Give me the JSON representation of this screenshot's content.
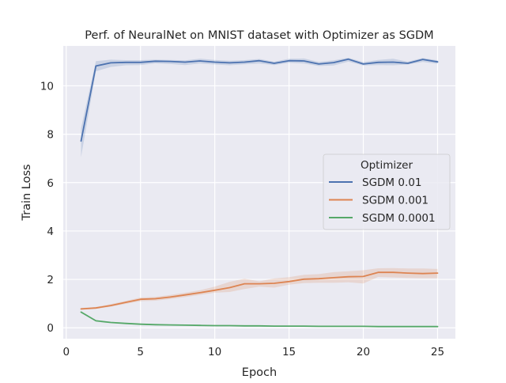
{
  "chart_data": {
    "type": "line",
    "title": "Perf. of NeuralNet on MNIST dataset with Optimizer as SGDM",
    "xlabel": "Epoch",
    "ylabel": "Train Loss",
    "xlim": [
      -0.2,
      26.2
    ],
    "ylim": [
      -0.45,
      11.65
    ],
    "x_ticks": [
      0,
      5,
      10,
      15,
      20,
      25
    ],
    "y_ticks": [
      0,
      2,
      4,
      6,
      8,
      10
    ],
    "grid": true,
    "legend": {
      "title": "Optimizer",
      "placement": "center-right"
    },
    "x": [
      1,
      2,
      3,
      4,
      5,
      6,
      7,
      8,
      9,
      10,
      11,
      12,
      13,
      14,
      15,
      16,
      17,
      18,
      19,
      20,
      21,
      22,
      23,
      24,
      25
    ],
    "series": [
      {
        "name": "SGDM 0.01",
        "color": "#4c72b0",
        "values": [
          7.72,
          10.82,
          10.95,
          10.97,
          10.97,
          11.02,
          11.01,
          10.98,
          11.03,
          10.98,
          10.95,
          10.98,
          11.04,
          10.93,
          11.04,
          11.03,
          10.9,
          10.96,
          11.1,
          10.9,
          10.97,
          10.98,
          10.93,
          11.09,
          10.99
        ],
        "band_low": [
          7.05,
          10.6,
          10.78,
          10.85,
          10.86,
          10.93,
          10.9,
          10.86,
          10.92,
          10.88,
          10.85,
          10.89,
          10.92,
          10.86,
          10.95,
          10.92,
          10.82,
          10.84,
          11.0,
          10.84,
          10.86,
          10.85,
          10.88,
          10.99,
          10.91
        ],
        "band_high": [
          8.25,
          11.02,
          11.08,
          11.06,
          11.06,
          11.08,
          11.07,
          11.05,
          11.12,
          11.07,
          11.04,
          11.06,
          11.11,
          11.0,
          11.12,
          11.13,
          10.99,
          11.05,
          11.16,
          10.98,
          11.07,
          11.12,
          11.0,
          11.15,
          11.05
        ]
      },
      {
        "name": "SGDM 0.001",
        "color": "#dd8452",
        "values": [
          0.78,
          0.82,
          0.92,
          1.05,
          1.18,
          1.2,
          1.27,
          1.36,
          1.45,
          1.55,
          1.66,
          1.82,
          1.82,
          1.84,
          1.91,
          2.01,
          2.03,
          2.07,
          2.11,
          2.12,
          2.29,
          2.29,
          2.26,
          2.24,
          2.26
        ],
        "band_low": [
          0.74,
          0.79,
          0.87,
          0.99,
          1.1,
          1.12,
          1.19,
          1.27,
          1.36,
          1.45,
          1.48,
          1.6,
          1.7,
          1.66,
          1.78,
          1.85,
          1.86,
          1.86,
          1.88,
          1.83,
          2.1,
          2.08,
          2.06,
          2.05,
          2.05
        ],
        "band_high": [
          0.82,
          0.86,
          0.98,
          1.11,
          1.25,
          1.28,
          1.36,
          1.45,
          1.55,
          1.7,
          1.9,
          2.03,
          1.92,
          2.04,
          2.09,
          2.19,
          2.22,
          2.3,
          2.34,
          2.38,
          2.46,
          2.47,
          2.45,
          2.45,
          2.43
        ]
      },
      {
        "name": "SGDM 0.0001",
        "color": "#55a868",
        "values": [
          0.65,
          0.29,
          0.22,
          0.18,
          0.15,
          0.13,
          0.12,
          0.11,
          0.1,
          0.09,
          0.09,
          0.08,
          0.08,
          0.07,
          0.07,
          0.07,
          0.06,
          0.06,
          0.06,
          0.06,
          0.05,
          0.05,
          0.05,
          0.05,
          0.05
        ],
        "band_low": [
          0.61,
          0.27,
          0.21,
          0.17,
          0.14,
          0.12,
          0.11,
          0.1,
          0.09,
          0.08,
          0.08,
          0.07,
          0.07,
          0.06,
          0.06,
          0.06,
          0.05,
          0.05,
          0.05,
          0.05,
          0.04,
          0.04,
          0.04,
          0.04,
          0.04
        ],
        "band_high": [
          0.69,
          0.31,
          0.23,
          0.19,
          0.16,
          0.14,
          0.13,
          0.12,
          0.11,
          0.1,
          0.1,
          0.09,
          0.09,
          0.08,
          0.08,
          0.08,
          0.07,
          0.07,
          0.07,
          0.07,
          0.06,
          0.06,
          0.06,
          0.06,
          0.06
        ]
      }
    ],
    "colors": {
      "plot_background": "#eaeaf2",
      "grid": "#ffffff",
      "text": "#262626"
    }
  }
}
